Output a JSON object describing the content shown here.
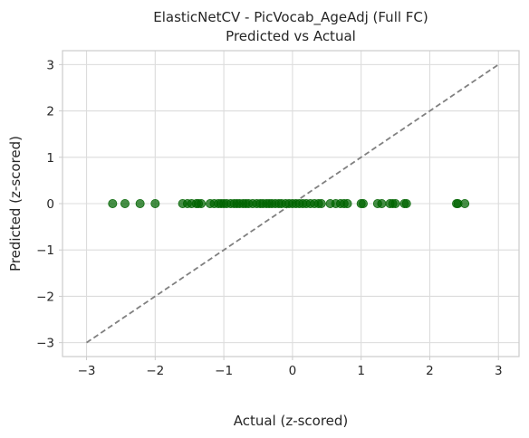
{
  "chart_data": {
    "type": "scatter",
    "title": "ElasticNetCV - PicVocab_AgeAdj (Full FC)",
    "subtitle": "Predicted vs Actual",
    "xlabel": "Actual (z-scored)",
    "ylabel": "Predicted (z-scored)",
    "xlim": [
      -3.35,
      3.3
    ],
    "ylim": [
      -3.3,
      3.3
    ],
    "xticks": [
      -3,
      -2,
      -1,
      0,
      1,
      2,
      3
    ],
    "yticks": [
      -3,
      -2,
      -1,
      0,
      1,
      2,
      3
    ],
    "xtick_labels": [
      "−3",
      "−2",
      "−1",
      "0",
      "1",
      "2",
      "3"
    ],
    "ytick_labels": [
      "−3",
      "−2",
      "−1",
      "0",
      "1",
      "2",
      "3"
    ],
    "grid": true,
    "point_color": "#006400",
    "line_color": "#808080",
    "reference_line": {
      "x": [
        -3,
        3
      ],
      "y": [
        -3,
        3
      ],
      "style": "dashed"
    },
    "points": {
      "x": [
        -2.62,
        -2.44,
        -2.22,
        -2.0,
        -1.6,
        -1.53,
        -1.47,
        -1.4,
        -1.37,
        -1.33,
        -1.2,
        -1.14,
        -1.08,
        -1.04,
        -1.0,
        -0.96,
        -0.9,
        -0.85,
        -0.81,
        -0.77,
        -0.72,
        -0.68,
        -0.64,
        -0.58,
        -0.52,
        -0.47,
        -0.43,
        -0.38,
        -0.34,
        -0.3,
        -0.25,
        -0.2,
        -0.16,
        -0.1,
        -0.05,
        0.0,
        0.05,
        0.1,
        0.15,
        0.2,
        0.26,
        0.32,
        0.38,
        0.42,
        0.55,
        0.63,
        0.7,
        0.75,
        0.8,
        1.0,
        1.03,
        1.24,
        1.3,
        1.42,
        1.46,
        1.5,
        1.63,
        1.66,
        2.39,
        2.41,
        2.51
      ],
      "y": [
        0,
        0,
        0,
        0,
        0,
        0,
        0,
        0,
        0,
        0,
        0,
        0,
        0,
        0,
        0,
        0,
        0,
        0,
        0,
        0,
        0,
        0,
        0,
        0,
        0,
        0,
        0,
        0,
        0,
        0,
        0,
        0,
        0,
        0,
        0,
        0,
        0,
        0,
        0,
        0,
        0,
        0,
        0,
        0,
        0,
        0,
        0,
        0,
        0,
        0,
        0,
        0,
        0,
        0,
        0,
        0,
        0,
        0,
        0,
        0,
        0
      ]
    }
  }
}
